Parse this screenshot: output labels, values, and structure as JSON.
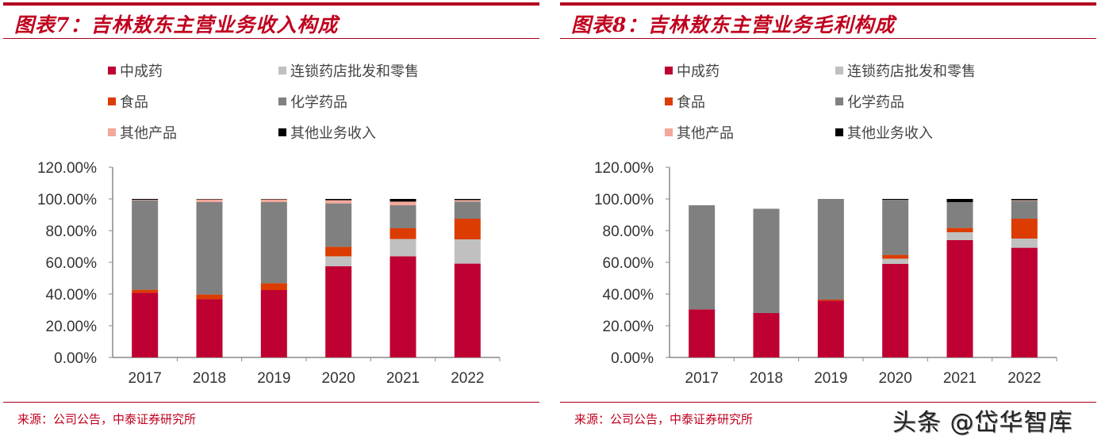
{
  "legend_colors": {
    "中成药": "#be0032",
    "连锁药店批发和零售": "#c0c0c0",
    "食品": "#dc3c00",
    "化学药品": "#808080",
    "其他产品": "#f4a89a",
    "其他业务收入": "#000000"
  },
  "chart_data": [
    {
      "type": "bar",
      "stacked": true,
      "title": "图表7：吉林敖东主营业务收入构成",
      "source": "来源：公司公告，中泰证券研究所",
      "categories": [
        "2017",
        "2018",
        "2019",
        "2020",
        "2021",
        "2022"
      ],
      "ylim": [
        0,
        120
      ],
      "yticks": [
        "0.00%",
        "20.00%",
        "40.00%",
        "60.00%",
        "80.00%",
        "100.00%",
        "120.00%"
      ],
      "legend": [
        "中成药",
        "连锁药店批发和零售",
        "食品",
        "化学药品",
        "其他产品",
        "其他业务收入"
      ],
      "legend_placement": "top",
      "series": [
        {
          "name": "中成药",
          "values": [
            40.8,
            36.8,
            42.5,
            57.5,
            63.8,
            59.2
          ]
        },
        {
          "name": "连锁药店批发和零售",
          "values": [
            0,
            0,
            0,
            6.3,
            10.9,
            15.3
          ]
        },
        {
          "name": "食品",
          "values": [
            1.9,
            2.9,
            4.3,
            6.0,
            6.8,
            13.0
          ]
        },
        {
          "name": "化学药品",
          "values": [
            56.5,
            58.3,
            51.2,
            27.4,
            14.5,
            10.8
          ]
        },
        {
          "name": "其他产品",
          "values": [
            0.3,
            1.7,
            1.7,
            2.0,
            2.3,
            1.0
          ]
        },
        {
          "name": "其他业务收入",
          "values": [
            0.5,
            0.3,
            0.3,
            0.8,
            1.7,
            0.7
          ]
        }
      ]
    },
    {
      "type": "bar",
      "stacked": true,
      "title": "图表8：吉林敖东主营业务毛利构成",
      "source": "来源：公司公告，中泰证券研究所",
      "categories": [
        "2017",
        "2018",
        "2019",
        "2020",
        "2021",
        "2022"
      ],
      "ylim": [
        0,
        120
      ],
      "yticks": [
        "0.00%",
        "20.00%",
        "40.00%",
        "60.00%",
        "80.00%",
        "100.00%",
        "120.00%"
      ],
      "legend": [
        "中成药",
        "连锁药店批发和零售",
        "食品",
        "化学药品",
        "其他产品",
        "其他业务收入"
      ],
      "legend_placement": "top",
      "series": [
        {
          "name": "中成药",
          "values": [
            30.3,
            28.0,
            35.8,
            59.0,
            74.0,
            69.2
          ]
        },
        {
          "name": "连锁药店批发和零售",
          "values": [
            0,
            0,
            0,
            3.3,
            5.0,
            5.8
          ]
        },
        {
          "name": "食品",
          "values": [
            0,
            0,
            0.7,
            2.4,
            2.7,
            12.5
          ]
        },
        {
          "name": "化学药品",
          "values": [
            65.7,
            65.8,
            63.5,
            34.8,
            16.3,
            11.3
          ]
        },
        {
          "name": "其他产品",
          "values": [
            0,
            0,
            0,
            0,
            0,
            0.4
          ]
        },
        {
          "name": "其他业务收入",
          "values": [
            0,
            0,
            0,
            0.5,
            2.0,
            0.8
          ]
        }
      ]
    }
  ],
  "watermark": "头条 @岱华智库"
}
